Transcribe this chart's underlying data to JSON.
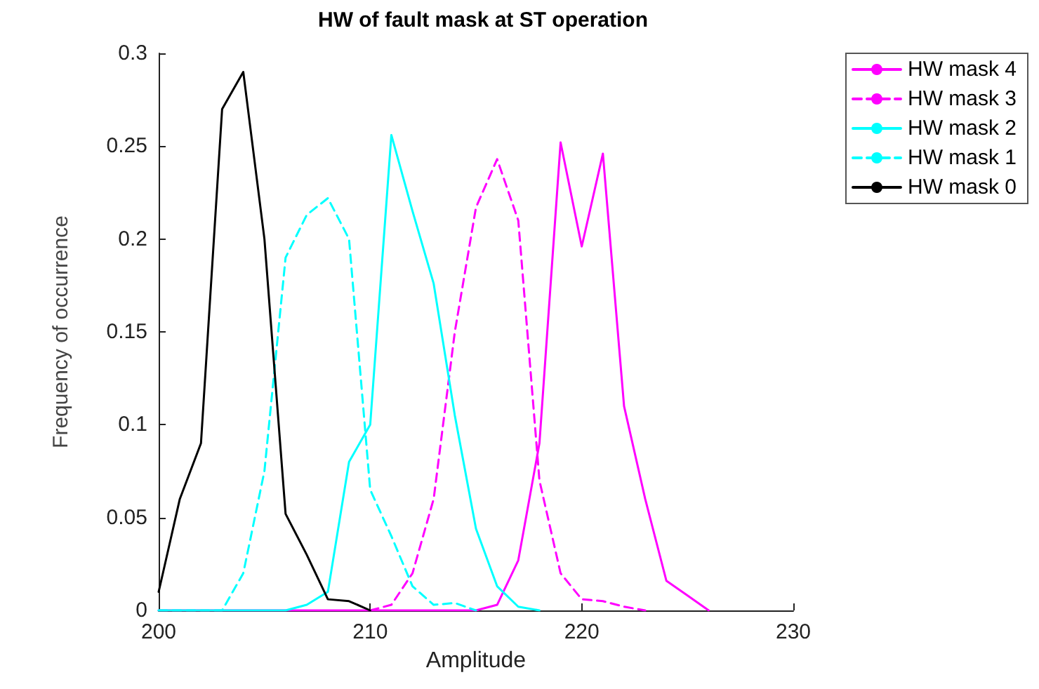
{
  "chart_data": {
    "type": "line",
    "title": "HW of fault mask at ST operation",
    "xlabel": "Amplitude",
    "ylabel": "Frequency of occurrence",
    "xlim": [
      200,
      230
    ],
    "xticks": [
      200,
      210,
      220,
      230
    ],
    "ylim": [
      0,
      0.3
    ],
    "yticks": [
      0,
      0.05,
      0.1,
      0.15,
      0.2,
      0.25,
      0.3
    ],
    "grid": false,
    "legend": "top right",
    "marker": "none",
    "series": [
      {
        "name": "HW mask 4",
        "color": "#ff00ff",
        "line_style": "solid",
        "x": [
          200,
          215,
          216,
          217,
          218,
          219,
          220,
          221,
          222,
          223,
          224,
          225,
          226
        ],
        "values": [
          0,
          0,
          0.003,
          0.027,
          0.09,
          0.252,
          0.196,
          0.246,
          0.11,
          0.06,
          0.016,
          0.008,
          0
        ]
      },
      {
        "name": "HW mask 3",
        "color": "#ff00ff",
        "line_style": "dashed",
        "x": [
          210,
          211,
          212,
          213,
          214,
          215,
          216,
          217,
          218,
          219,
          220,
          221,
          222,
          223
        ],
        "values": [
          0,
          0.003,
          0.02,
          0.06,
          0.15,
          0.217,
          0.243,
          0.21,
          0.07,
          0.02,
          0.006,
          0.005,
          0.002,
          0
        ]
      },
      {
        "name": "HW mask 2",
        "color": "#00ffff",
        "line_style": "solid",
        "x": [
          200,
          206,
          207,
          208,
          209,
          210,
          211,
          212,
          213,
          214,
          215,
          216,
          217,
          218
        ],
        "values": [
          0,
          0,
          0.003,
          0.01,
          0.08,
          0.1,
          0.256,
          0.215,
          0.176,
          0.105,
          0.044,
          0.013,
          0.002,
          0
        ]
      },
      {
        "name": "HW mask 1",
        "color": "#00ffff",
        "line_style": "dashed",
        "x": [
          200,
          203,
          204,
          205,
          206,
          207,
          208,
          209,
          210,
          211,
          212,
          213,
          214,
          215
        ],
        "values": [
          0,
          0,
          0.02,
          0.075,
          0.19,
          0.213,
          0.222,
          0.2,
          0.065,
          0.04,
          0.013,
          0.003,
          0.004,
          0
        ]
      },
      {
        "name": "HW mask 0",
        "color": "#000000",
        "line_style": "solid",
        "x": [
          200,
          201,
          202,
          203,
          204,
          205,
          206,
          207,
          208,
          209,
          210
        ],
        "values": [
          0.01,
          0.06,
          0.09,
          0.27,
          0.29,
          0.2,
          0.052,
          0.03,
          0.006,
          0.005,
          0
        ]
      }
    ]
  }
}
